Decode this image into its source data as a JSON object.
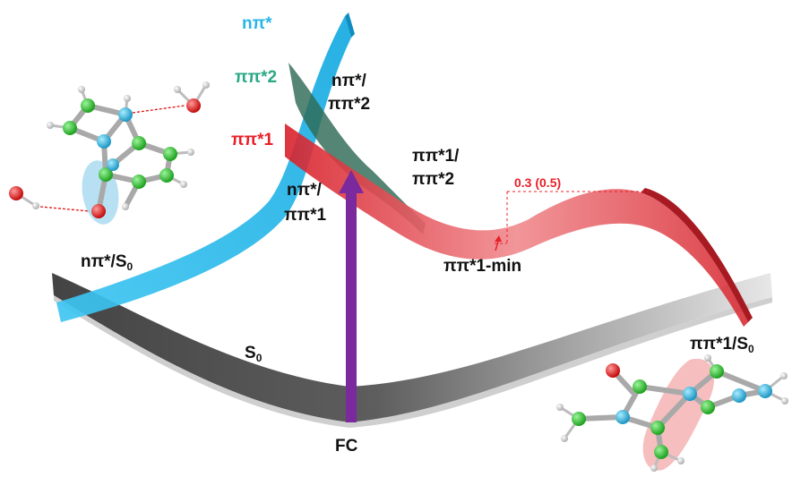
{
  "surfaces": {
    "npi_star": "nπ*",
    "pipi_star_2": "ππ*2",
    "pipi_star_1": "ππ*1",
    "s0_main": "S",
    "s0_sub": "0"
  },
  "crossings": {
    "npi_pipi2_line1": "nπ*/",
    "npi_pipi2_line2": "ππ*2",
    "npi_pipi1_line1": "nπ*/",
    "npi_pipi1_line2": "ππ*1",
    "pipi1_pipi2_line1": "ππ*1/",
    "pipi1_pipi2_line2": "ππ*2",
    "npi_s0_main": "nπ*/S",
    "npi_s0_sub": "0",
    "pipi1_s0_main": "ππ*1/S",
    "pipi1_s0_sub": "0"
  },
  "points": {
    "fc": "FC",
    "pipi1_min": "ππ*1-min",
    "barrier": "0.3 (0.5)"
  },
  "colors": {
    "npi_surface": "#2ec3f0",
    "pipi2_surface": "#2f6a55",
    "pipi1_surface": "#e8454c",
    "s0_surface": "#555555",
    "excitation_arrow": "#7b2a9e",
    "oxygen": "#e01010",
    "carbon": "#22bb22",
    "nitrogen": "#22b0d8",
    "hydrogen": "#f2f2f2"
  },
  "icons": {
    "molecule_left": "cluster-molecule-icon",
    "molecule_right": "product-molecule-icon"
  }
}
